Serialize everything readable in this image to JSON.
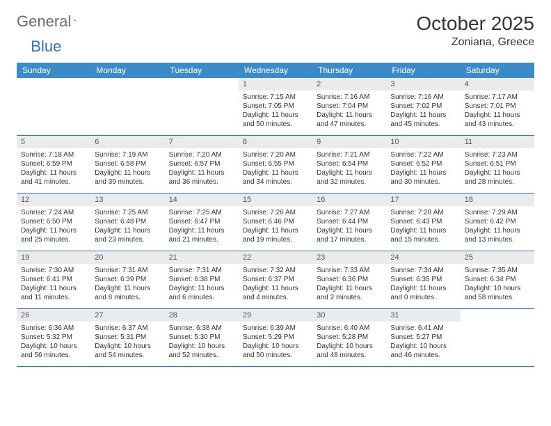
{
  "logo": {
    "text1": "General",
    "text2": "Blue"
  },
  "title": "October 2025",
  "location": "Zoniana, Greece",
  "colors": {
    "header_bg": "#3b8bc9",
    "header_text": "#ffffff",
    "daynum_bg": "#ebebeb",
    "week_border": "#2f74b5",
    "body_text": "#333333",
    "logo_gray": "#6b6b6b",
    "logo_blue": "#2f74b5"
  },
  "day_names": [
    "Sunday",
    "Monday",
    "Tuesday",
    "Wednesday",
    "Thursday",
    "Friday",
    "Saturday"
  ],
  "weeks": [
    [
      null,
      null,
      null,
      {
        "n": "1",
        "sr": "Sunrise: 7:15 AM",
        "ss": "Sunset: 7:05 PM",
        "dl": "Daylight: 11 hours and 50 minutes."
      },
      {
        "n": "2",
        "sr": "Sunrise: 7:16 AM",
        "ss": "Sunset: 7:04 PM",
        "dl": "Daylight: 11 hours and 47 minutes."
      },
      {
        "n": "3",
        "sr": "Sunrise: 7:16 AM",
        "ss": "Sunset: 7:02 PM",
        "dl": "Daylight: 11 hours and 45 minutes."
      },
      {
        "n": "4",
        "sr": "Sunrise: 7:17 AM",
        "ss": "Sunset: 7:01 PM",
        "dl": "Daylight: 11 hours and 43 minutes."
      }
    ],
    [
      {
        "n": "5",
        "sr": "Sunrise: 7:18 AM",
        "ss": "Sunset: 6:59 PM",
        "dl": "Daylight: 11 hours and 41 minutes."
      },
      {
        "n": "6",
        "sr": "Sunrise: 7:19 AM",
        "ss": "Sunset: 6:58 PM",
        "dl": "Daylight: 11 hours and 39 minutes."
      },
      {
        "n": "7",
        "sr": "Sunrise: 7:20 AM",
        "ss": "Sunset: 6:57 PM",
        "dl": "Daylight: 11 hours and 36 minutes."
      },
      {
        "n": "8",
        "sr": "Sunrise: 7:20 AM",
        "ss": "Sunset: 6:55 PM",
        "dl": "Daylight: 11 hours and 34 minutes."
      },
      {
        "n": "9",
        "sr": "Sunrise: 7:21 AM",
        "ss": "Sunset: 6:54 PM",
        "dl": "Daylight: 11 hours and 32 minutes."
      },
      {
        "n": "10",
        "sr": "Sunrise: 7:22 AM",
        "ss": "Sunset: 6:52 PM",
        "dl": "Daylight: 11 hours and 30 minutes."
      },
      {
        "n": "11",
        "sr": "Sunrise: 7:23 AM",
        "ss": "Sunset: 6:51 PM",
        "dl": "Daylight: 11 hours and 28 minutes."
      }
    ],
    [
      {
        "n": "12",
        "sr": "Sunrise: 7:24 AM",
        "ss": "Sunset: 6:50 PM",
        "dl": "Daylight: 11 hours and 25 minutes."
      },
      {
        "n": "13",
        "sr": "Sunrise: 7:25 AM",
        "ss": "Sunset: 6:48 PM",
        "dl": "Daylight: 11 hours and 23 minutes."
      },
      {
        "n": "14",
        "sr": "Sunrise: 7:25 AM",
        "ss": "Sunset: 6:47 PM",
        "dl": "Daylight: 11 hours and 21 minutes."
      },
      {
        "n": "15",
        "sr": "Sunrise: 7:26 AM",
        "ss": "Sunset: 6:46 PM",
        "dl": "Daylight: 11 hours and 19 minutes."
      },
      {
        "n": "16",
        "sr": "Sunrise: 7:27 AM",
        "ss": "Sunset: 6:44 PM",
        "dl": "Daylight: 11 hours and 17 minutes."
      },
      {
        "n": "17",
        "sr": "Sunrise: 7:28 AM",
        "ss": "Sunset: 6:43 PM",
        "dl": "Daylight: 11 hours and 15 minutes."
      },
      {
        "n": "18",
        "sr": "Sunrise: 7:29 AM",
        "ss": "Sunset: 6:42 PM",
        "dl": "Daylight: 11 hours and 13 minutes."
      }
    ],
    [
      {
        "n": "19",
        "sr": "Sunrise: 7:30 AM",
        "ss": "Sunset: 6:41 PM",
        "dl": "Daylight: 11 hours and 11 minutes."
      },
      {
        "n": "20",
        "sr": "Sunrise: 7:31 AM",
        "ss": "Sunset: 6:39 PM",
        "dl": "Daylight: 11 hours and 8 minutes."
      },
      {
        "n": "21",
        "sr": "Sunrise: 7:31 AM",
        "ss": "Sunset: 6:38 PM",
        "dl": "Daylight: 11 hours and 6 minutes."
      },
      {
        "n": "22",
        "sr": "Sunrise: 7:32 AM",
        "ss": "Sunset: 6:37 PM",
        "dl": "Daylight: 11 hours and 4 minutes."
      },
      {
        "n": "23",
        "sr": "Sunrise: 7:33 AM",
        "ss": "Sunset: 6:36 PM",
        "dl": "Daylight: 11 hours and 2 minutes."
      },
      {
        "n": "24",
        "sr": "Sunrise: 7:34 AM",
        "ss": "Sunset: 6:35 PM",
        "dl": "Daylight: 11 hours and 0 minutes."
      },
      {
        "n": "25",
        "sr": "Sunrise: 7:35 AM",
        "ss": "Sunset: 6:34 PM",
        "dl": "Daylight: 10 hours and 58 minutes."
      }
    ],
    [
      {
        "n": "26",
        "sr": "Sunrise: 6:36 AM",
        "ss": "Sunset: 5:32 PM",
        "dl": "Daylight: 10 hours and 56 minutes."
      },
      {
        "n": "27",
        "sr": "Sunrise: 6:37 AM",
        "ss": "Sunset: 5:31 PM",
        "dl": "Daylight: 10 hours and 54 minutes."
      },
      {
        "n": "28",
        "sr": "Sunrise: 6:38 AM",
        "ss": "Sunset: 5:30 PM",
        "dl": "Daylight: 10 hours and 52 minutes."
      },
      {
        "n": "29",
        "sr": "Sunrise: 6:39 AM",
        "ss": "Sunset: 5:29 PM",
        "dl": "Daylight: 10 hours and 50 minutes."
      },
      {
        "n": "30",
        "sr": "Sunrise: 6:40 AM",
        "ss": "Sunset: 5:28 PM",
        "dl": "Daylight: 10 hours and 48 minutes."
      },
      {
        "n": "31",
        "sr": "Sunrise: 6:41 AM",
        "ss": "Sunset: 5:27 PM",
        "dl": "Daylight: 10 hours and 46 minutes."
      },
      null
    ]
  ]
}
